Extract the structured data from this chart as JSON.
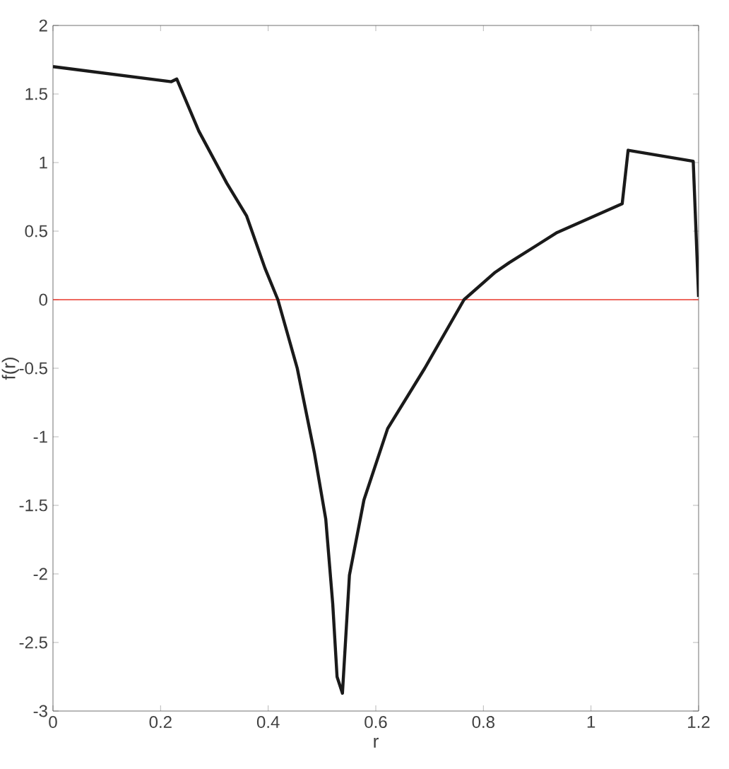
{
  "chart_data": {
    "type": "line",
    "xlabel": "r",
    "ylabel": "f(r)",
    "xlim": [
      0,
      1.2
    ],
    "ylim": [
      -3,
      2
    ],
    "xticks": [
      0,
      0.2,
      0.4,
      0.6,
      0.8,
      1,
      1.2
    ],
    "yticks": [
      -3,
      -2.5,
      -2,
      -1.5,
      -1,
      -0.5,
      0,
      0.5,
      1,
      1.5,
      2
    ],
    "series": [
      {
        "color": "#1a1a1a",
        "x": [
          0,
          0.22,
          0.23,
          0.271,
          0.323,
          0.36,
          0.394,
          0.418,
          0.454,
          0.486,
          0.507,
          0.52,
          0.528,
          0.538,
          0.551,
          0.578,
          0.622,
          0.691,
          0.764,
          0.822,
          0.848,
          0.937,
          1.058,
          1.069,
          1.19,
          1.2
        ],
        "values": [
          1.7,
          1.59,
          1.61,
          1.23,
          0.85,
          0.61,
          0.23,
          0,
          -0.5,
          -1.12,
          -1.6,
          -2.22,
          -2.75,
          -2.87,
          -2.01,
          -1.46,
          -0.94,
          -0.5,
          0,
          0.2,
          0.27,
          0.49,
          0.7,
          1.09,
          1.01,
          0.02
        ]
      }
    ],
    "ref_lines": [
      {
        "axis": "y",
        "value": 0,
        "color": "#e8372c"
      }
    ],
    "grid": false,
    "marker": "none",
    "line_style": "solid"
  }
}
